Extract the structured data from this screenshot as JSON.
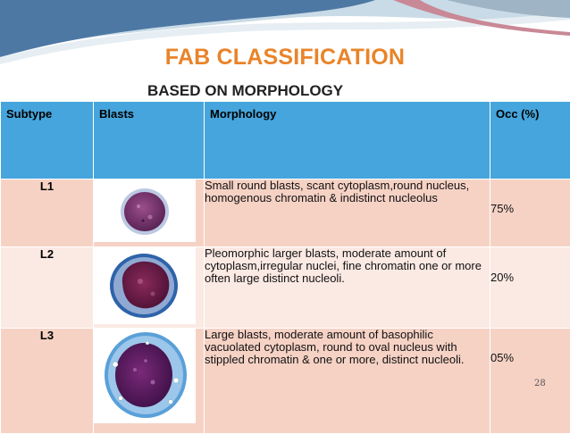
{
  "slide": {
    "title": "FAB CLASSIFICATION",
    "subtitle": "BASED ON MORPHOLOGY",
    "page_number": "28",
    "colors": {
      "title": "#e9842a",
      "header_row": "#46a5dc",
      "row_shade_a": "#f6d2c5",
      "row_shade_b": "#fbe9e3"
    }
  },
  "table": {
    "headers": {
      "subtype": "Subtype",
      "blasts": "Blasts",
      "morphology": "Morphology",
      "occ": "Occ (%)"
    },
    "rows": [
      {
        "subtype": "L1",
        "blast_image": "small round blast cell micrograph",
        "morphology": "Small round blasts, scant cytoplasm,round nucleus, homogenous chromatin & indistinct nucleolus",
        "occ": "75%"
      },
      {
        "subtype": "L2",
        "blast_image": "pleomorphic larger blast cell micrograph",
        "morphology": "Pleomorphic larger blasts, moderate amount of cytoplasm,irregular nuclei, fine chromatin one or more often large distinct nucleoli.",
        "occ": "20%"
      },
      {
        "subtype": "L3",
        "blast_image": "vacuolated large blast cell micrograph",
        "morphology": "Large blasts, moderate amount of basophilic vacuolated cytoplasm, round to oval nucleus with stippled chromatin & one or more, distinct nucleoli.",
        "occ": "05%"
      }
    ]
  }
}
